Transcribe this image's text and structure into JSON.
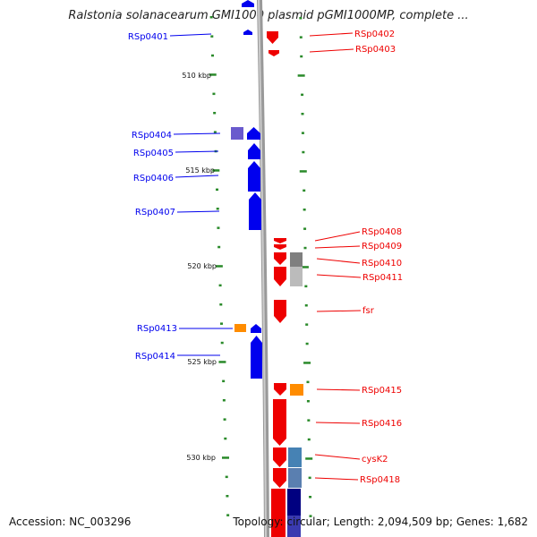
{
  "title": "Ralstonia solanacearum GMI1000 plasmid pGMI1000MP, complete ...",
  "footer": {
    "accession": "Accession: NC_003296",
    "stats": "Topology: circular; Length: 2,094,509 bp; Genes: 1,682"
  },
  "kbp_labels": [
    "510 kbp",
    "515 kbp",
    "520 kbp",
    "525 kbp",
    "530 kbp"
  ],
  "colors": {
    "reverse_gene": "#0000ee",
    "forward_gene": "#ee0000",
    "backbone": "#999999",
    "tick": "#2a8a2a",
    "orange": "#ff8c00",
    "slate": "#6a5acd",
    "steel": "#4682b4",
    "navy": "#000080",
    "grey": "#7f7f7f"
  },
  "genes_left": [
    {
      "label": "RSp0401"
    },
    {
      "label": "RSp0404"
    },
    {
      "label": "RSp0405"
    },
    {
      "label": "RSp0406"
    },
    {
      "label": "RSp0407"
    },
    {
      "label": "RSp0413"
    },
    {
      "label": "RSp0414"
    }
  ],
  "genes_right": [
    {
      "label": "RSp0402"
    },
    {
      "label": "RSp0403"
    },
    {
      "label": "RSp0408"
    },
    {
      "label": "RSp0409"
    },
    {
      "label": "RSp0410"
    },
    {
      "label": "RSp0411"
    },
    {
      "label": "fsr"
    },
    {
      "label": "RSp0415"
    },
    {
      "label": "RSp0416"
    },
    {
      "label": "cysK2"
    },
    {
      "label": "RSp0418"
    }
  ]
}
